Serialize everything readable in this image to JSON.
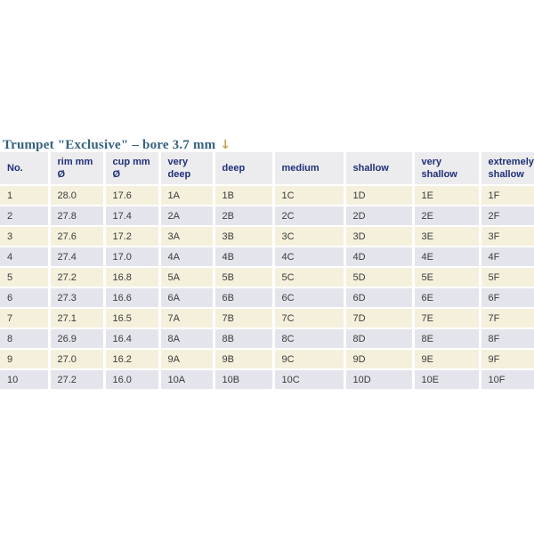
{
  "header": {
    "title": "Trumpet \"Exclusive\" – bore 3.7 mm",
    "arrow": "↓"
  },
  "colors": {
    "title_text": "#35617d",
    "arrow": "#c2a255",
    "header_bg": "#ececee",
    "header_text": "#1e3078",
    "row_odd_bg": "#f5f0dc",
    "row_even_bg": "#e4e5ec",
    "cell_text": "#3b3b3b"
  },
  "table": {
    "columns": [
      "No.",
      "rim mm Ø",
      "cup mm Ø",
      "very deep",
      "deep",
      "medium",
      "shallow",
      "very shallow",
      "extremely shallow"
    ],
    "rows": [
      [
        "1",
        "28.0",
        "17.6",
        "1A",
        "1B",
        "1C",
        "1D",
        "1E",
        "1F"
      ],
      [
        "2",
        "27.8",
        "17.4",
        "2A",
        "2B",
        "2C",
        "2D",
        "2E",
        "2F"
      ],
      [
        "3",
        "27.6",
        "17.2",
        "3A",
        "3B",
        "3C",
        "3D",
        "3E",
        "3F"
      ],
      [
        "4",
        "27.4",
        "17.0",
        "4A",
        "4B",
        "4C",
        "4D",
        "4E",
        "4F"
      ],
      [
        "5",
        "27.2",
        "16.8",
        "5A",
        "5B",
        "5C",
        "5D",
        "5E",
        "5F"
      ],
      [
        "6",
        "27.3",
        "16.6",
        "6A",
        "6B",
        "6C",
        "6D",
        "6E",
        "6F"
      ],
      [
        "7",
        "27.1",
        "16.5",
        "7A",
        "7B",
        "7C",
        "7D",
        "7E",
        "7F"
      ],
      [
        "8",
        "26.9",
        "16.4",
        "8A",
        "8B",
        "8C",
        "8D",
        "8E",
        "8F"
      ],
      [
        "9",
        "27.0",
        "16.2",
        "9A",
        "9B",
        "9C",
        "9D",
        "9E",
        "9F"
      ],
      [
        "10",
        "27.2",
        "16.0",
        "10A",
        "10B",
        "10C",
        "10D",
        "10E",
        "10F"
      ]
    ]
  }
}
